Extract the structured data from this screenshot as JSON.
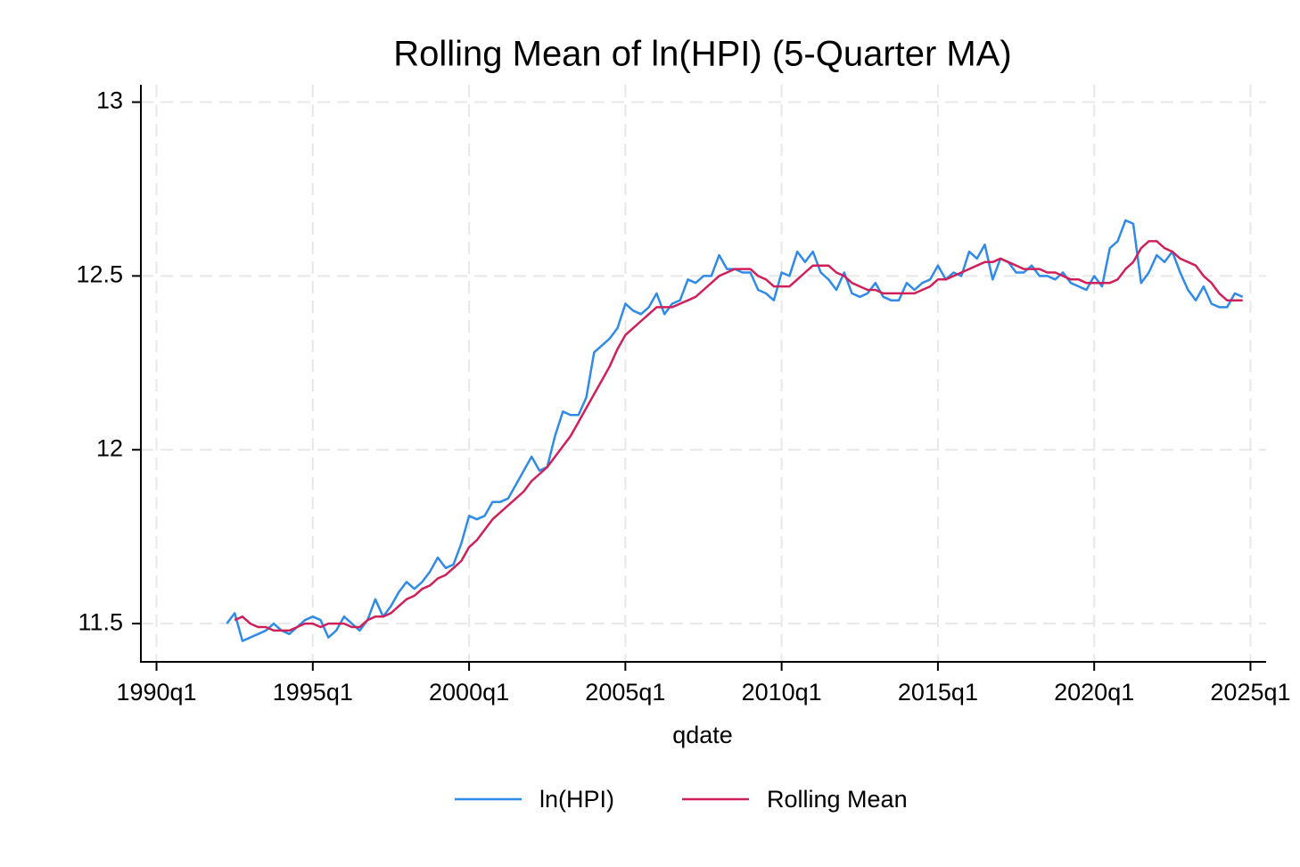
{
  "chart_data": {
    "type": "line",
    "title": "Rolling Mean of ln(HPI) (5-Quarter MA)",
    "xlabel": "qdate",
    "x": [
      "1992q2",
      "1992q3",
      "1992q4",
      "1993q1",
      "1993q2",
      "1993q3",
      "1993q4",
      "1994q1",
      "1994q2",
      "1994q3",
      "1994q4",
      "1995q1",
      "1995q2",
      "1995q3",
      "1995q4",
      "1996q1",
      "1996q2",
      "1996q3",
      "1996q4",
      "1997q1",
      "1997q2",
      "1997q3",
      "1997q4",
      "1998q1",
      "1998q2",
      "1998q3",
      "1998q4",
      "1999q1",
      "1999q2",
      "1999q3",
      "1999q4",
      "2000q1",
      "2000q2",
      "2000q3",
      "2000q4",
      "2001q1",
      "2001q2",
      "2001q3",
      "2001q4",
      "2002q1",
      "2002q2",
      "2002q3",
      "2002q4",
      "2003q1",
      "2003q2",
      "2003q3",
      "2003q4",
      "2004q1",
      "2004q2",
      "2004q3",
      "2004q4",
      "2005q1",
      "2005q2",
      "2005q3",
      "2005q4",
      "2006q1",
      "2006q2",
      "2006q3",
      "2006q4",
      "2007q1",
      "2007q2",
      "2007q3",
      "2007q4",
      "2008q1",
      "2008q2",
      "2008q3",
      "2008q4",
      "2009q1",
      "2009q2",
      "2009q3",
      "2009q4",
      "2010q1",
      "2010q2",
      "2010q3",
      "2010q4",
      "2011q1",
      "2011q2",
      "2011q3",
      "2011q4",
      "2012q1",
      "2012q2",
      "2012q3",
      "2012q4",
      "2013q1",
      "2013q2",
      "2013q3",
      "2013q4",
      "2014q1",
      "2014q2",
      "2014q3",
      "2014q4",
      "2015q1",
      "2015q2",
      "2015q3",
      "2015q4",
      "2016q1",
      "2016q2",
      "2016q3",
      "2016q4",
      "2017q1",
      "2017q2",
      "2017q3",
      "2017q4",
      "2018q1",
      "2018q2",
      "2018q3",
      "2018q4",
      "2019q1",
      "2019q2",
      "2019q3",
      "2019q4",
      "2020q1",
      "2020q2",
      "2020q3",
      "2020q4",
      "2021q1",
      "2021q2",
      "2021q3",
      "2021q4",
      "2022q1",
      "2022q2",
      "2022q3",
      "2022q4",
      "2023q1",
      "2023q2",
      "2023q3",
      "2023q4",
      "2024q1",
      "2024q2",
      "2024q3",
      "2024q4"
    ],
    "series": [
      {
        "name": "ln(HPI)",
        "color": "#2f8ae8",
        "values": [
          11.5,
          11.53,
          11.45,
          11.46,
          11.47,
          11.48,
          11.5,
          11.48,
          11.47,
          11.49,
          11.51,
          11.52,
          11.51,
          11.46,
          11.48,
          11.52,
          11.5,
          11.48,
          11.51,
          11.57,
          11.52,
          11.55,
          11.59,
          11.62,
          11.6,
          11.62,
          11.65,
          11.69,
          11.66,
          11.67,
          11.73,
          11.81,
          11.8,
          11.81,
          11.85,
          11.85,
          11.86,
          11.9,
          11.94,
          11.98,
          11.94,
          11.95,
          12.04,
          12.11,
          12.1,
          12.1,
          12.15,
          12.28,
          12.3,
          12.32,
          12.35,
          12.42,
          12.4,
          12.39,
          12.41,
          12.45,
          12.39,
          12.42,
          12.43,
          12.49,
          12.48,
          12.5,
          12.5,
          12.56,
          12.52,
          12.52,
          12.51,
          12.51,
          12.46,
          12.45,
          12.43,
          12.51,
          12.5,
          12.57,
          12.54,
          12.57,
          12.51,
          12.49,
          12.46,
          12.51,
          12.45,
          12.44,
          12.45,
          12.48,
          12.44,
          12.43,
          12.43,
          12.48,
          12.46,
          12.48,
          12.49,
          12.53,
          12.49,
          12.51,
          12.5,
          12.57,
          12.55,
          12.59,
          12.49,
          12.55,
          12.54,
          12.51,
          12.51,
          12.53,
          12.5,
          12.5,
          12.49,
          12.51,
          12.48,
          12.47,
          12.46,
          12.5,
          12.47,
          12.58,
          12.6,
          12.66,
          12.65,
          12.48,
          12.51,
          12.56,
          12.54,
          12.57,
          12.51,
          12.46,
          12.43,
          12.47,
          12.42,
          12.41,
          12.41,
          12.45,
          12.44
        ]
      },
      {
        "name": "Rolling Mean",
        "color": "#d0205a",
        "values": [
          null,
          11.51,
          11.52,
          11.5,
          11.49,
          11.49,
          11.48,
          11.48,
          11.48,
          11.49,
          11.5,
          11.5,
          11.49,
          11.5,
          11.5,
          11.5,
          11.49,
          11.49,
          11.51,
          11.52,
          11.52,
          11.53,
          11.55,
          11.57,
          11.58,
          11.6,
          11.61,
          11.63,
          11.64,
          11.66,
          11.68,
          11.72,
          11.74,
          11.77,
          11.8,
          11.82,
          11.84,
          11.86,
          11.88,
          11.91,
          11.93,
          11.95,
          11.98,
          12.01,
          12.04,
          12.08,
          12.12,
          12.16,
          12.2,
          12.24,
          12.29,
          12.33,
          12.35,
          12.37,
          12.39,
          12.41,
          12.41,
          12.41,
          12.42,
          12.43,
          12.44,
          12.46,
          12.48,
          12.5,
          12.51,
          12.52,
          12.52,
          12.52,
          12.5,
          12.49,
          12.47,
          12.47,
          12.47,
          12.49,
          12.51,
          12.53,
          12.53,
          12.53,
          12.51,
          12.5,
          12.48,
          12.47,
          12.46,
          12.46,
          12.45,
          12.45,
          12.45,
          12.45,
          12.45,
          12.46,
          12.47,
          12.49,
          12.49,
          12.5,
          12.51,
          12.52,
          12.53,
          12.54,
          12.54,
          12.55,
          12.54,
          12.53,
          12.52,
          12.52,
          12.52,
          12.51,
          12.51,
          12.5,
          12.49,
          12.49,
          12.48,
          12.48,
          12.48,
          12.48,
          12.49,
          12.52,
          12.54,
          12.58,
          12.6,
          12.6,
          12.58,
          12.57,
          12.55,
          12.54,
          12.53,
          12.5,
          12.48,
          12.45,
          12.43,
          12.43,
          12.43
        ]
      }
    ],
    "xlim": [
      "1989q3",
      "2025q3"
    ],
    "xticks": [
      "1990q1",
      "1995q1",
      "2000q1",
      "2005q1",
      "2010q1",
      "2015q1",
      "2020q1",
      "2025q1"
    ],
    "ylim": [
      11.39,
      13.05
    ],
    "yticks": [
      11.5,
      12,
      12.5,
      13
    ],
    "grid": true,
    "legend": "bottom"
  }
}
